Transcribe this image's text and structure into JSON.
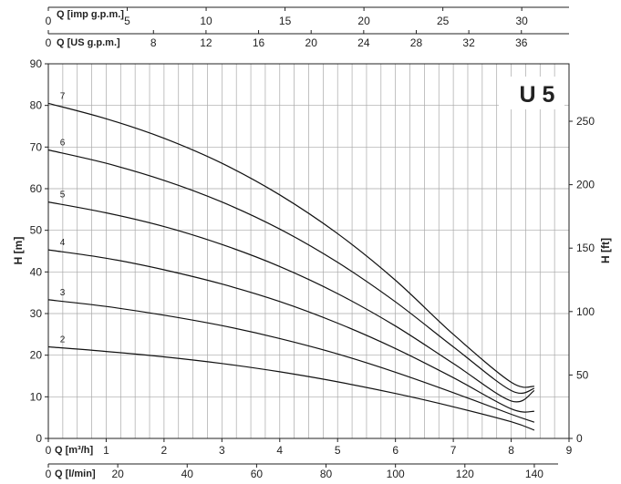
{
  "chart_data": {
    "type": "line",
    "model": "U 5",
    "ylabel_left": "H [m]",
    "ylabel_right": "H [ft]",
    "xlabel_m3h": "Q [m³/h]",
    "xlabel_lmin": "Q [l/min]",
    "xlabel_usgpm": "Q [US g.p.m.]",
    "xlabel_impgpm": "Q [imp g.p.m.]",
    "xlim": [
      0,
      9
    ],
    "ylim": [
      0,
      90
    ],
    "grid": true,
    "y_ticks": [
      "0",
      "10",
      "20",
      "30",
      "40",
      "50",
      "60",
      "70",
      "80",
      "90"
    ],
    "y_ft_ticks": [
      "0",
      "50",
      "100",
      "150",
      "200",
      "250"
    ],
    "x_ticks": [
      "0",
      "1",
      "2",
      "3",
      "4",
      "5",
      "6",
      "7",
      "8",
      "9"
    ],
    "x_lmin_ticks": [
      "0",
      "20",
      "40",
      "60",
      "80",
      "100",
      "120",
      "140"
    ],
    "x_usgpm_ticks": [
      "0",
      "8",
      "12",
      "16",
      "20",
      "24",
      "28",
      "32",
      "36"
    ],
    "x_impgpm_ticks": [
      "0",
      "5",
      "10",
      "15",
      "20",
      "25",
      "30"
    ],
    "series": [
      {
        "name": "2",
        "x": [
          0,
          1,
          2,
          3,
          4,
          5,
          6,
          7,
          8,
          8.4
        ],
        "y": [
          22,
          20.9,
          19.6,
          18.0,
          16.0,
          13.6,
          10.8,
          7.6,
          4.0,
          2.0
        ]
      },
      {
        "name": "3",
        "x": [
          0,
          1,
          2,
          3,
          4,
          5,
          6,
          7,
          8,
          8.4
        ],
        "y": [
          33.3,
          31.7,
          29.6,
          27.1,
          24.0,
          20.3,
          15.9,
          11.0,
          5.8,
          3.9
        ]
      },
      {
        "name": "4",
        "x": [
          0,
          1,
          2,
          3,
          4,
          5,
          6,
          7,
          8,
          8.4
        ],
        "y": [
          45.3,
          43.3,
          40.5,
          37.1,
          32.9,
          27.7,
          21.6,
          14.6,
          7.1,
          6.5
        ]
      },
      {
        "name": "5",
        "x": [
          0,
          1,
          2,
          3,
          4,
          5,
          6,
          7,
          8,
          8.4
        ],
        "y": [
          56.8,
          54.2,
          50.9,
          46.6,
          41.3,
          34.8,
          27.0,
          18.0,
          9.0,
          11.5
        ]
      },
      {
        "name": "6",
        "x": [
          0,
          1,
          2,
          3,
          4,
          5,
          6,
          7,
          8,
          8.4
        ],
        "y": [
          69.3,
          66.1,
          62.0,
          56.8,
          50.3,
          42.3,
          32.8,
          22.0,
          11.5,
          12.0
        ]
      },
      {
        "name": "7",
        "x": [
          0,
          1,
          2,
          3,
          4,
          5,
          6,
          7,
          8,
          8.4
        ],
        "y": [
          80.5,
          76.8,
          72.1,
          66.1,
          58.5,
          49.2,
          38.0,
          25.0,
          13.5,
          12.5
        ]
      }
    ]
  }
}
